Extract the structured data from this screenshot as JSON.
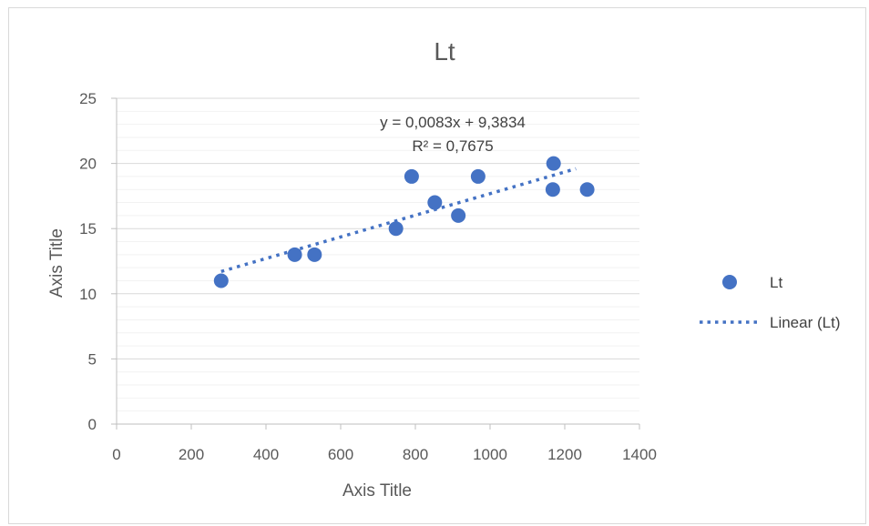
{
  "chart_data": {
    "type": "scatter",
    "title": "Lt",
    "xlabel": "Axis Title",
    "ylabel": "Axis Title",
    "xlim": [
      0,
      1400
    ],
    "ylim": [
      0,
      25
    ],
    "x_ticks": [
      0,
      200,
      400,
      600,
      800,
      1000,
      1200,
      1400
    ],
    "y_ticks": [
      0,
      5,
      10,
      15,
      20,
      25
    ],
    "x_tick_labels": [
      "0",
      "200",
      "400",
      "600",
      "800",
      "1000",
      "1200",
      "1400"
    ],
    "y_tick_labels": [
      "0",
      "5",
      "10",
      "15",
      "20",
      "25"
    ],
    "grid": true,
    "legend_position": "right",
    "series": [
      {
        "name": "Lt",
        "color": "#4472c4",
        "points": [
          {
            "x": 280,
            "y": 11
          },
          {
            "x": 477,
            "y": 13
          },
          {
            "x": 530,
            "y": 13
          },
          {
            "x": 748,
            "y": 15
          },
          {
            "x": 790,
            "y": 19
          },
          {
            "x": 852,
            "y": 17
          },
          {
            "x": 915,
            "y": 16
          },
          {
            "x": 968,
            "y": 19
          },
          {
            "x": 1168,
            "y": 18
          },
          {
            "x": 1170,
            "y": 20
          },
          {
            "x": 1260,
            "y": 18
          }
        ]
      }
    ],
    "trendline": {
      "name": "Linear (Lt)",
      "type": "linear",
      "slope": 0.0083,
      "intercept": 9.3834,
      "x_range": [
        280,
        1230
      ],
      "color": "#4472c4",
      "equation_label": "y = 0,0083x + 9,3834",
      "r2_label": "R² = 0,7675"
    },
    "legend": [
      "Lt",
      "Linear (Lt)"
    ]
  }
}
